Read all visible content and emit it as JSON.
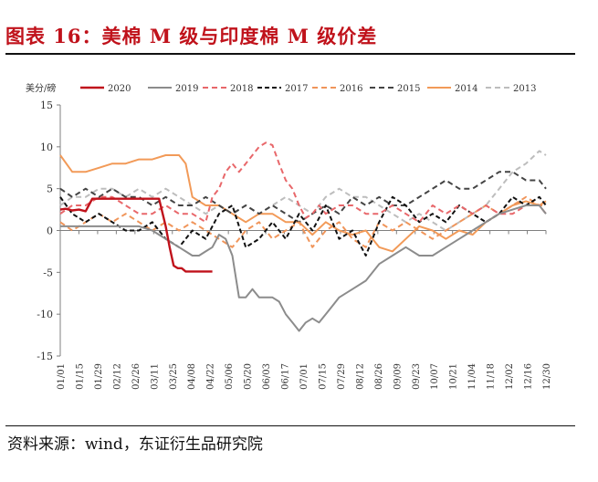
{
  "header": {
    "title": "图表 16：美棉 M 级与印度棉 M 级价差"
  },
  "footer": {
    "source": "资料来源：wind，东证衍生品研究院"
  },
  "chart_data": {
    "type": "line",
    "ylabel": "美分/磅",
    "ylim": [
      -15,
      15
    ],
    "yticks": [
      15,
      10,
      5,
      0,
      -5,
      -10,
      -15
    ],
    "x_ticks": [
      "01/01",
      "01/15",
      "01/29",
      "02/12",
      "02/26",
      "03/11",
      "03/25",
      "04/08",
      "04/22",
      "05/06",
      "05/20",
      "06/03",
      "06/17",
      "07/01",
      "07/15",
      "07/29",
      "08/12",
      "08/26",
      "09/09",
      "09/23",
      "10/07",
      "10/21",
      "11/04",
      "11/18",
      "12/02",
      "12/16",
      "12/30"
    ],
    "x_unit": "day of year (1 = 01/01)",
    "grid": false,
    "legend_position": "top",
    "series": [
      {
        "name": "2020",
        "color": "#c0121b",
        "dash": "solid",
        "width": 2.4,
        "x": [
          1,
          5,
          10,
          15,
          20,
          25,
          30,
          35,
          40,
          45,
          50,
          55,
          60,
          65,
          70,
          75,
          80,
          83,
          86,
          89,
          92,
          95,
          99,
          103,
          107,
          111,
          115
        ],
        "y": [
          2.5,
          2.6,
          2.4,
          2.5,
          2.3,
          3.8,
          3.8,
          3.8,
          3.8,
          3.8,
          3.8,
          3.8,
          3.8,
          3.8,
          3.8,
          3.8,
          0.5,
          -2.0,
          -4.2,
          -4.5,
          -4.5,
          -4.9,
          -4.9,
          -4.9,
          -4.9,
          -4.9,
          -4.9
        ]
      },
      {
        "name": "2019",
        "color": "#8c8c8c",
        "dash": "solid",
        "width": 2.0,
        "x": [
          1,
          10,
          20,
          30,
          40,
          50,
          60,
          70,
          75,
          80,
          85,
          90,
          95,
          100,
          105,
          110,
          115,
          120,
          125,
          130,
          135,
          140,
          145,
          150,
          155,
          160,
          165,
          170,
          175,
          180,
          185,
          190,
          195,
          200,
          205,
          210,
          220,
          230,
          240,
          250,
          260,
          270,
          280,
          290,
          300,
          310,
          320,
          330,
          340,
          350,
          360,
          365
        ],
        "y": [
          0.5,
          0.5,
          0.5,
          0.5,
          0.5,
          0.5,
          0.5,
          0,
          -0.5,
          -1,
          -1.5,
          -2,
          -2.5,
          -3,
          -3,
          -2.5,
          -2,
          -0.5,
          -1,
          -3,
          -8,
          -8,
          -7,
          -8,
          -8,
          -8,
          -8.5,
          -10,
          -11,
          -12,
          -11,
          -10.5,
          -11,
          -10,
          -9,
          -8,
          -7,
          -6,
          -4,
          -3,
          -2,
          -3,
          -3,
          -2,
          -1,
          0,
          1,
          2,
          2.5,
          3,
          3,
          2
        ]
      },
      {
        "name": "2018",
        "color": "#e8676a",
        "dash": "6,4",
        "width": 2.0,
        "x": [
          1,
          10,
          20,
          30,
          40,
          50,
          60,
          70,
          80,
          90,
          100,
          110,
          115,
          120,
          125,
          130,
          135,
          140,
          145,
          150,
          155,
          160,
          165,
          170,
          175,
          180,
          185,
          190,
          195,
          200,
          210,
          220,
          230,
          240,
          250,
          260,
          270,
          280,
          290,
          300,
          310,
          320,
          330,
          340,
          350,
          360,
          365
        ],
        "y": [
          2,
          3,
          3,
          4,
          4,
          3,
          2,
          2,
          3,
          2,
          2,
          1,
          4,
          5,
          7,
          8,
          7,
          8,
          9,
          10,
          10.5,
          10.2,
          8,
          6,
          5,
          3,
          1.5,
          2,
          3,
          2,
          3,
          3,
          2,
          2,
          3,
          2,
          1,
          3,
          2,
          3,
          2,
          3,
          2,
          2,
          3,
          3,
          2
        ]
      },
      {
        "name": "2017",
        "color": "#111111",
        "dash": "5,3",
        "width": 2.0,
        "x": [
          1,
          10,
          20,
          30,
          40,
          50,
          60,
          70,
          80,
          90,
          100,
          110,
          120,
          130,
          140,
          150,
          160,
          170,
          180,
          190,
          200,
          210,
          220,
          230,
          240,
          250,
          260,
          270,
          280,
          290,
          300,
          310,
          320,
          330,
          340,
          350,
          360,
          365
        ],
        "y": [
          4,
          2,
          1,
          2,
          1,
          0,
          0,
          1,
          -1,
          -2,
          0,
          -1,
          2,
          3,
          -2,
          -1,
          1,
          -1,
          2,
          0,
          3,
          -1,
          0,
          -3,
          1,
          4,
          3,
          1,
          2,
          1,
          3,
          2,
          1,
          2,
          4,
          3,
          4,
          3
        ]
      },
      {
        "name": "2016",
        "color": "#f0955a",
        "dash": "6,4",
        "width": 2.0,
        "x": [
          1,
          10,
          20,
          30,
          40,
          50,
          60,
          70,
          80,
          90,
          100,
          110,
          120,
          130,
          140,
          150,
          160,
          170,
          180,
          190,
          200,
          210,
          220,
          230,
          240,
          250,
          260,
          270,
          280,
          290,
          300,
          310,
          320,
          330,
          340,
          350,
          360,
          365
        ],
        "y": [
          1,
          0,
          1,
          2,
          1,
          2,
          1,
          0,
          1,
          0,
          1,
          0,
          -1,
          -2,
          0,
          1,
          -1,
          0,
          1,
          -2,
          0,
          1,
          -1,
          -2,
          1,
          0,
          1,
          0,
          -1,
          0,
          1,
          2,
          3,
          2,
          3,
          4,
          3,
          3
        ]
      },
      {
        "name": "2015",
        "color": "#444444",
        "dash": "6,4",
        "width": 2.0,
        "x": [
          1,
          10,
          20,
          30,
          40,
          50,
          60,
          70,
          80,
          90,
          100,
          110,
          120,
          130,
          140,
          150,
          160,
          170,
          180,
          190,
          200,
          210,
          220,
          230,
          240,
          250,
          260,
          270,
          280,
          290,
          300,
          310,
          320,
          330,
          340,
          350,
          360,
          365
        ],
        "y": [
          5,
          4,
          5,
          4,
          5,
          4,
          4,
          3,
          4,
          3,
          3,
          4,
          3,
          2,
          3,
          2,
          3,
          2,
          1,
          2,
          3,
          2,
          4,
          3,
          4,
          3,
          3,
          4,
          5,
          6,
          5,
          5,
          6,
          7,
          7,
          6,
          6,
          5
        ]
      },
      {
        "name": "2014",
        "color": "#f29a58",
        "dash": "solid",
        "width": 2.0,
        "x": [
          1,
          10,
          20,
          30,
          40,
          50,
          60,
          70,
          80,
          90,
          95,
          100,
          110,
          120,
          130,
          140,
          150,
          160,
          170,
          180,
          190,
          200,
          210,
          220,
          230,
          240,
          250,
          260,
          270,
          280,
          290,
          300,
          310,
          320,
          330,
          340,
          350,
          360,
          365
        ],
        "y": [
          9,
          7,
          7,
          7.5,
          8,
          8,
          8.5,
          8.5,
          9,
          9,
          8,
          4,
          3,
          3,
          2,
          1,
          2,
          2,
          1,
          1,
          -0.5,
          1,
          0,
          -0.5,
          0,
          -2,
          -2.5,
          -1,
          0.5,
          0,
          -1,
          0,
          -0.5,
          1,
          2,
          3,
          3.5,
          3,
          3.5
        ]
      },
      {
        "name": "2013",
        "color": "#bdbdbd",
        "dash": "6,4",
        "width": 2.0,
        "x": [
          1,
          10,
          20,
          30,
          40,
          50,
          60,
          70,
          80,
          90,
          100,
          110,
          120,
          130,
          140,
          150,
          160,
          170,
          180,
          190,
          200,
          210,
          220,
          230,
          240,
          250,
          260,
          270,
          280,
          290,
          300,
          310,
          320,
          330,
          340,
          350,
          360,
          365
        ],
        "y": [
          3,
          4,
          4,
          5,
          5,
          4,
          5,
          4,
          5,
          4,
          3,
          2,
          3,
          2,
          3,
          2,
          3,
          4,
          3,
          2,
          4,
          5,
          4,
          4,
          3,
          2,
          1,
          2,
          1,
          0,
          1,
          2,
          3,
          5,
          7,
          8,
          9.5,
          9
        ]
      }
    ]
  }
}
